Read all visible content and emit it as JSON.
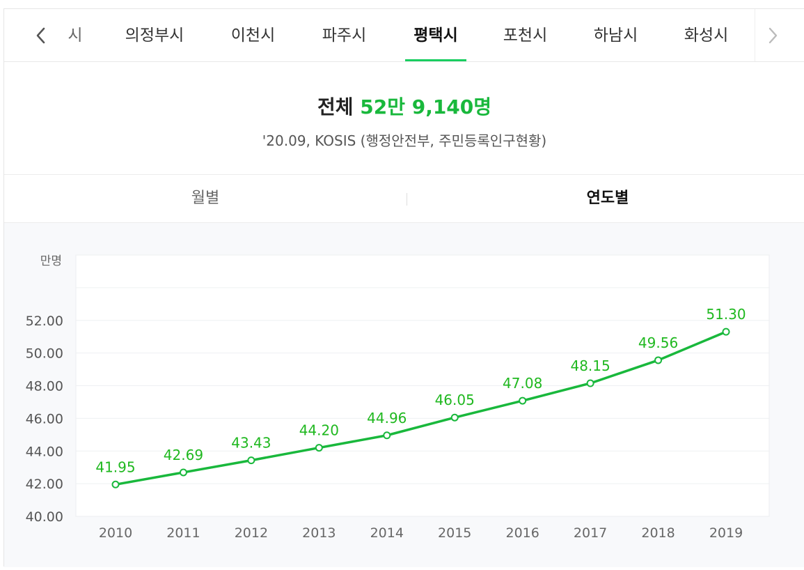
{
  "tabs": {
    "prev_label": "안성시",
    "prev_visible": "시",
    "items": [
      {
        "label": "의정부시",
        "active": false
      },
      {
        "label": "이천시",
        "active": false
      },
      {
        "label": "파주시",
        "active": false
      },
      {
        "label": "평택시",
        "active": true
      },
      {
        "label": "포천시",
        "active": false
      },
      {
        "label": "하남시",
        "active": false
      },
      {
        "label": "화성시",
        "active": false
      }
    ]
  },
  "summary": {
    "total_label": "전체",
    "total_value": "52만 9,140명",
    "source": "'20.09, KOSIS (행정안전부, 주민등록인구현황)"
  },
  "toggle": {
    "monthly": "월별",
    "yearly": "연도별",
    "selected": "yearly"
  },
  "colors": {
    "accent": "#19ce60",
    "line": "#19b83c",
    "label": "#1fb81f"
  },
  "chart_data": {
    "type": "line",
    "unit_label": "만명",
    "x": [
      "2010",
      "2011",
      "2012",
      "2013",
      "2014",
      "2015",
      "2016",
      "2017",
      "2018",
      "2019"
    ],
    "series": [
      {
        "values": [
          41.95,
          42.69,
          43.43,
          44.2,
          44.96,
          46.05,
          47.08,
          48.15,
          49.56,
          51.3
        ],
        "labels": [
          "41.95",
          "42.69",
          "43.43",
          "44.20",
          "44.96",
          "46.05",
          "47.08",
          "48.15",
          "49.56",
          "51.30"
        ]
      }
    ],
    "yticks": [
      "40.00",
      "42.00",
      "44.00",
      "46.00",
      "48.00",
      "50.00",
      "52.00"
    ],
    "ylim": [
      40,
      56
    ],
    "grid": true
  }
}
